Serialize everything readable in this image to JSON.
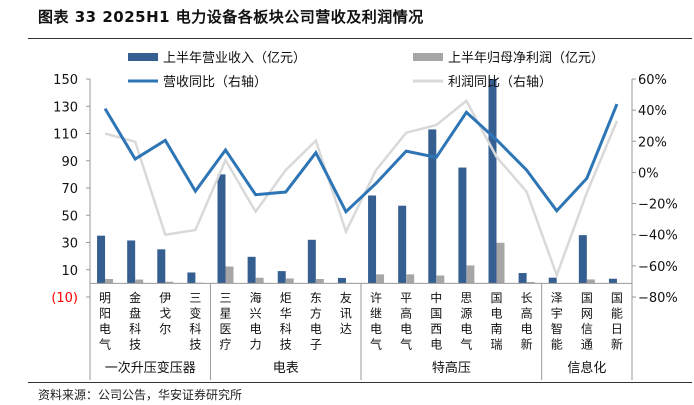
{
  "title": "图表 33 2025H1 电力设备各板块公司营收及利润情况",
  "source": "资料来源：公司公告，华安证券研究所",
  "colors": {
    "revenue_bar": "#365F91",
    "profit_bar": "#A6A6A6",
    "revenue_yoy_line": "#2E75B6",
    "profit_yoy_line": "#D9D9D9",
    "negative_tick": "#FF0000"
  },
  "chart_data": {
    "type": "bar+line",
    "legend_placement": "top",
    "grid": false,
    "categories": [
      "明阳电气",
      "金盘科技",
      "伊戈尔",
      "三变科技",
      "三星医疗",
      "海兴电力",
      "炬华科技",
      "东方电子",
      "友讯达",
      "许继电气",
      "平高电气",
      "中国西电",
      "思源电气",
      "国电南瑞",
      "长高电新",
      "泽宇智能",
      "国网信通",
      "国能日新"
    ],
    "groups": [
      {
        "label": "一次升压变压器",
        "count": 4
      },
      {
        "label": "电表",
        "count": 5
      },
      {
        "label": "特高压",
        "count": 6
      },
      {
        "label": "信息化",
        "count": 3
      }
    ],
    "left_axis": {
      "range": [
        -10,
        150
      ],
      "ticks": [
        150,
        130,
        110,
        90,
        70,
        50,
        30,
        10,
        -10
      ],
      "tick_labels": [
        "150",
        "130",
        "110",
        "90",
        "70",
        "50",
        "30",
        "10",
        "(10)"
      ]
    },
    "right_axis": {
      "range": [
        -80,
        60
      ],
      "ticks": [
        60,
        40,
        20,
        0,
        -20,
        -40,
        -60,
        -80
      ],
      "tick_labels": [
        "60%",
        "40%",
        "20%",
        "0%",
        "−20%",
        "−40%",
        "−60%",
        "−80%"
      ]
    },
    "series": [
      {
        "name": "上半年营业收入（亿元）",
        "type": "bar",
        "axis": "left",
        "values": [
          35,
          31.5,
          25,
          8,
          80,
          19.5,
          9,
          32,
          4,
          64.5,
          57,
          113,
          85,
          150,
          7.6,
          4.2,
          35.4,
          3.4
        ]
      },
      {
        "name": "上半年归母净利润（亿元）",
        "type": "bar",
        "axis": "left",
        "values": [
          3.2,
          2.8,
          1.2,
          0.5,
          12.4,
          4.1,
          3.6,
          3.2,
          0.3,
          6.6,
          6.6,
          5.8,
          13.2,
          29.8,
          1.0,
          0.3,
          2.9,
          0.3
        ]
      },
      {
        "name": "营收同比（右轴）",
        "type": "line",
        "axis": "right",
        "values": [
          41,
          8.6,
          20.6,
          -12,
          14.4,
          -14.3,
          -12.6,
          12.7,
          -25.2,
          -7,
          13.7,
          9.7,
          38.6,
          21,
          1.5,
          -24.6,
          -3.8,
          43.9
        ]
      },
      {
        "name": "利润同比（右轴）",
        "type": "line",
        "axis": "right",
        "values": [
          25,
          19.7,
          -40,
          -37,
          8,
          -25.2,
          1.5,
          20.4,
          -38,
          1.5,
          25.5,
          30.4,
          46,
          10,
          -12.4,
          -66,
          -13,
          33
        ]
      }
    ]
  }
}
